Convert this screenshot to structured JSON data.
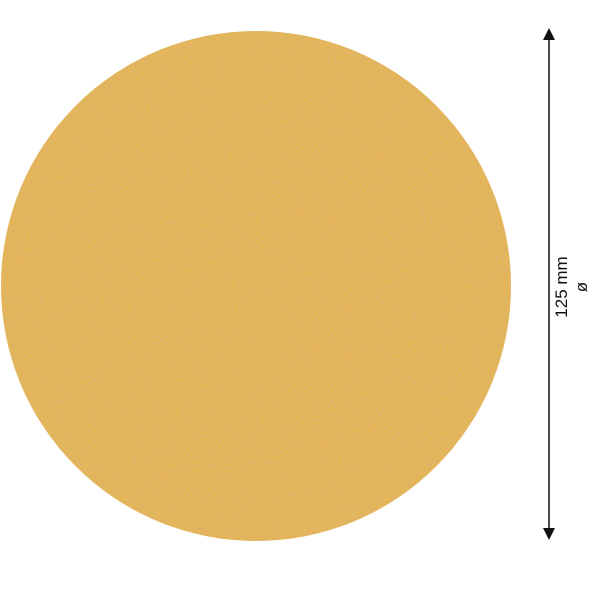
{
  "product": {
    "disc_color": "#e9b64c",
    "diameter_value": "125 mm",
    "diameter_symbol": "ø"
  }
}
